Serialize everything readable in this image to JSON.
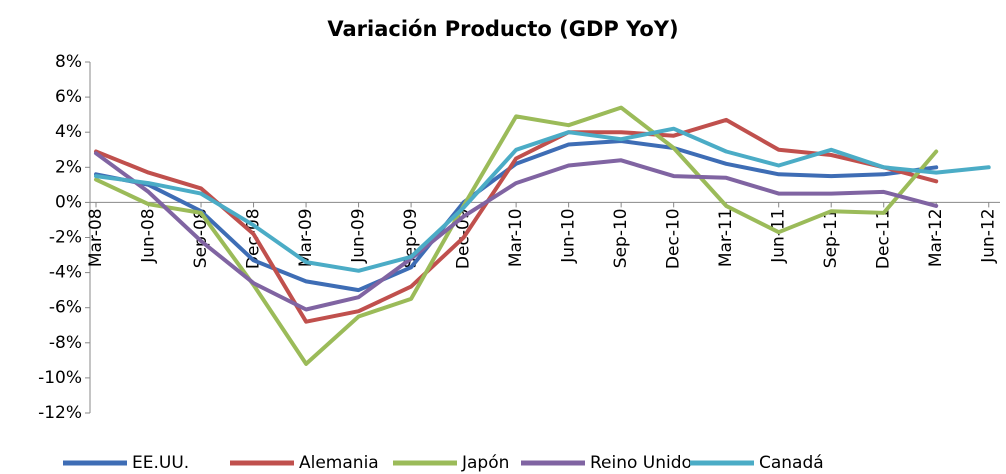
{
  "chart_data": {
    "type": "line",
    "title": "Variación Producto (GDP YoY)",
    "categories": [
      "Mar-08",
      "Jun-08",
      "Sep-08",
      "Dec-08",
      "Mar-09",
      "Jun-09",
      "Sep-09",
      "Dec-09",
      "Mar-10",
      "Jun-10",
      "Sep-10",
      "Dec-10",
      "Mar-11",
      "Jun-11",
      "Sep-11",
      "Dec-11",
      "Mar-12",
      "Jun-12"
    ],
    "series": [
      {
        "name": "EE.UU.",
        "color": "#3e6db5",
        "values": [
          1.6,
          1.0,
          -0.5,
          -3.3,
          -4.5,
          -5.0,
          -3.7,
          0.0,
          2.2,
          3.3,
          3.5,
          3.1,
          2.2,
          1.6,
          1.5,
          1.6,
          2.0,
          null
        ]
      },
      {
        "name": "Alemania",
        "color": "#c0504d",
        "values": [
          2.9,
          1.7,
          0.8,
          -1.8,
          -6.8,
          -6.2,
          -4.8,
          -2.0,
          2.5,
          4.0,
          4.0,
          3.8,
          4.7,
          3.0,
          2.7,
          2.0,
          1.2,
          null
        ]
      },
      {
        "name": "Japón",
        "color": "#9bbb59",
        "values": [
          1.3,
          -0.1,
          -0.6,
          -4.7,
          -9.2,
          -6.5,
          -5.5,
          -0.2,
          4.9,
          4.4,
          5.4,
          3.1,
          -0.2,
          -1.7,
          -0.5,
          -0.6,
          2.9,
          null
        ]
      },
      {
        "name": "Reino Unido",
        "color": "#8064a2",
        "values": [
          2.8,
          0.6,
          -2.2,
          -4.6,
          -6.1,
          -5.4,
          -3.2,
          -0.8,
          1.1,
          2.1,
          2.4,
          1.5,
          1.4,
          0.5,
          0.5,
          0.6,
          -0.2,
          null
        ]
      },
      {
        "name": "Canadá",
        "color": "#4bacc6",
        "values": [
          1.5,
          1.1,
          0.5,
          -1.3,
          -3.4,
          -3.9,
          -3.1,
          -0.3,
          3.0,
          4.0,
          3.6,
          4.2,
          2.9,
          2.1,
          3.0,
          2.0,
          1.7,
          2.0
        ]
      }
    ],
    "ylim": [
      -12,
      8
    ],
    "yticks": [
      {
        "value": -12,
        "label": "-12%"
      },
      {
        "value": -10,
        "label": "-10%"
      },
      {
        "value": -8,
        "label": "-8%"
      },
      {
        "value": -6,
        "label": "-6%"
      },
      {
        "value": -4,
        "label": "-4%"
      },
      {
        "value": -2,
        "label": "-2%"
      },
      {
        "value": 0,
        "label": "0%"
      },
      {
        "value": 2,
        "label": "2%"
      },
      {
        "value": 4,
        "label": "4%"
      },
      {
        "value": 6,
        "label": "6%"
      },
      {
        "value": 8,
        "label": "8%"
      }
    ],
    "legend": "bottom"
  }
}
